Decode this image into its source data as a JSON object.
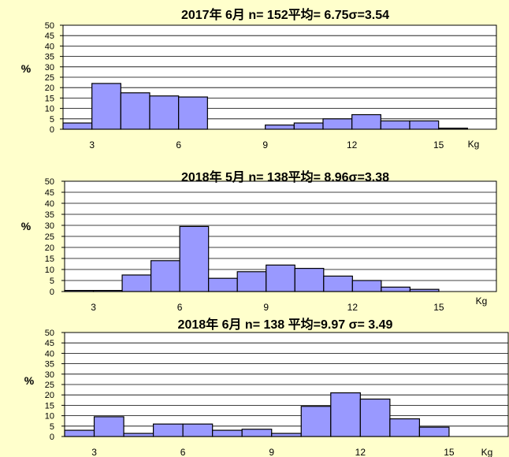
{
  "page": {
    "background": "#ffffcc"
  },
  "colors": {
    "bar_fill": "#9999ff",
    "bar_stroke": "#000000",
    "plot_bg": "#ffffff",
    "grid": "#000000"
  },
  "chart_data": [
    {
      "type": "bar",
      "title": "2017年 6月  n= 152平均= 6.75σ=3.54",
      "ylabel": "%",
      "xunit": "Kg",
      "ylim": [
        0,
        50
      ],
      "yticks": [
        0,
        5,
        10,
        15,
        20,
        25,
        30,
        35,
        40,
        45,
        50
      ],
      "xlim": [
        2,
        17
      ],
      "xticks": [
        3,
        6,
        9,
        12,
        15
      ],
      "bin_width": 1,
      "bins": [
        2,
        3,
        4,
        5,
        6,
        7,
        8,
        9,
        10,
        11,
        12,
        13,
        14,
        15
      ],
      "values": [
        3,
        22,
        17.5,
        16,
        15.5,
        0,
        0,
        2,
        3,
        5,
        7,
        4,
        4,
        0.5
      ],
      "grid": true
    },
    {
      "type": "bar",
      "title": "2018年 5月  n= 138平均= 8.96σ=3.38",
      "ylabel": "%",
      "xunit": "Kg",
      "ylim": [
        0,
        50
      ],
      "yticks": [
        0,
        5,
        10,
        15,
        20,
        25,
        30,
        35,
        40,
        45,
        50
      ],
      "xlim": [
        2,
        17
      ],
      "xticks": [
        3,
        6,
        9,
        12,
        15
      ],
      "bin_width": 1,
      "bins": [
        2,
        3,
        4,
        5,
        6,
        7,
        8,
        9,
        10,
        11,
        12,
        13,
        14,
        15
      ],
      "values": [
        0.5,
        0.5,
        7.5,
        14,
        29.5,
        6,
        9,
        12,
        10.5,
        7,
        5,
        2,
        1,
        0
      ],
      "grid": true
    },
    {
      "type": "bar",
      "title": "2018年 6月  n= 138  平均=9.97   σ= 3.49",
      "ylabel": "%",
      "xunit": "Kg",
      "ylim": [
        0,
        50
      ],
      "yticks": [
        0,
        5,
        10,
        15,
        20,
        25,
        30,
        35,
        40,
        45,
        50
      ],
      "xlim": [
        2,
        17
      ],
      "xticks": [
        3,
        6,
        9,
        12,
        15
      ],
      "bin_width": 1,
      "bins": [
        2,
        3,
        4,
        5,
        6,
        7,
        8,
        9,
        10,
        11,
        12,
        13,
        14,
        15
      ],
      "values": [
        3,
        9.5,
        1.5,
        6,
        6,
        3,
        3.5,
        1.5,
        14.5,
        21,
        18,
        8.5,
        4.5,
        0
      ],
      "grid": true
    }
  ]
}
